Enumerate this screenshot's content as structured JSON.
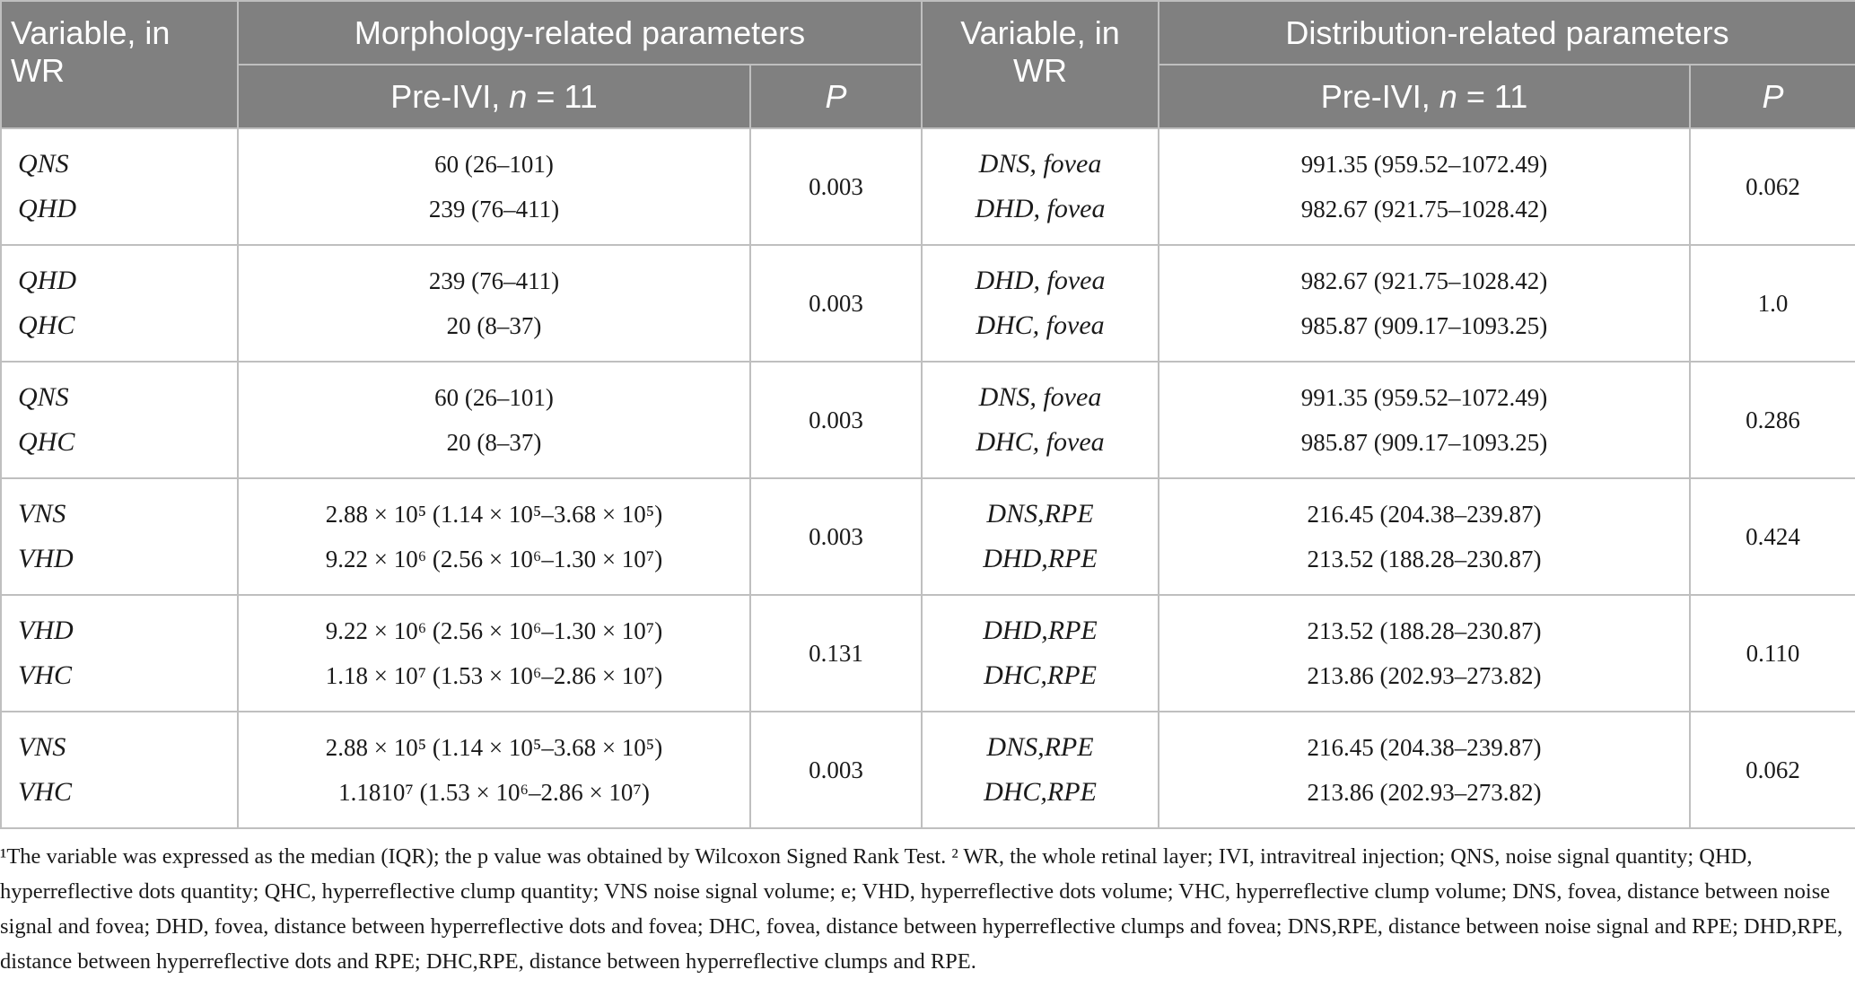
{
  "header": {
    "variable_label": "Variable, in WR",
    "morphology_group": "Morphology-related parameters",
    "distribution_group": "Distribution-related parameters",
    "pre_ivi_prefix": "Pre-IVI, ",
    "pre_ivi_n": "n",
    "pre_ivi_suffix": " = 11",
    "p_label": "P"
  },
  "rows": [
    {
      "m_var": [
        "QNS",
        "QHD"
      ],
      "m_val": [
        "60 (26–101)",
        "239 (76–411)"
      ],
      "m_p": "0.003",
      "d_var": [
        "DNS, fovea",
        "DHD, fovea"
      ],
      "d_val": [
        "991.35 (959.52–1072.49)",
        "982.67 (921.75–1028.42)"
      ],
      "d_p": "0.062"
    },
    {
      "m_var": [
        "QHD",
        "QHC"
      ],
      "m_val": [
        "239 (76–411)",
        "20 (8–37)"
      ],
      "m_p": "0.003",
      "d_var": [
        "DHD, fovea",
        "DHC, fovea"
      ],
      "d_val": [
        "982.67 (921.75–1028.42)",
        "985.87 (909.17–1093.25)"
      ],
      "d_p": "1.0"
    },
    {
      "m_var": [
        "QNS",
        "QHC"
      ],
      "m_val": [
        "60 (26–101)",
        "20 (8–37)"
      ],
      "m_p": "0.003",
      "d_var": [
        "DNS, fovea",
        "DHC, fovea"
      ],
      "d_val": [
        "991.35 (959.52–1072.49)",
        "985.87 (909.17–1093.25)"
      ],
      "d_p": "0.286"
    },
    {
      "m_var": [
        "VNS",
        "VHD"
      ],
      "m_val": [
        "2.88 × 10⁵ (1.14 × 10⁵–3.68 × 10⁵)",
        "9.22 × 10⁶ (2.56 × 10⁶–1.30 × 10⁷)"
      ],
      "m_p": "0.003",
      "d_var": [
        "DNS,RPE",
        "DHD,RPE"
      ],
      "d_val": [
        "216.45 (204.38–239.87)",
        "213.52 (188.28–230.87)"
      ],
      "d_p": "0.424"
    },
    {
      "m_var": [
        "VHD",
        "VHC"
      ],
      "m_val": [
        "9.22 × 10⁶ (2.56 × 10⁶–1.30 × 10⁷)",
        "1.18 × 10⁷ (1.53 × 10⁶–2.86 × 10⁷)"
      ],
      "m_p": "0.131",
      "d_var": [
        "DHD,RPE",
        "DHC,RPE"
      ],
      "d_val": [
        "213.52 (188.28–230.87)",
        "213.86 (202.93–273.82)"
      ],
      "d_p": "0.110"
    },
    {
      "m_var": [
        "VNS",
        "VHC"
      ],
      "m_val": [
        "2.88 × 10⁵ (1.14 × 10⁵–3.68 × 10⁵)",
        "1.1810⁷ (1.53 × 10⁶–2.86 × 10⁷)"
      ],
      "m_p": "0.003",
      "d_var": [
        "DNS,RPE",
        "DHC,RPE"
      ],
      "d_val": [
        "216.45 (204.38–239.87)",
        "213.86 (202.93–273.82)"
      ],
      "d_p": "0.062"
    }
  ],
  "footnote": "¹The variable was expressed as the median (IQR); the p value was obtained by Wilcoxon Signed Rank Test. ² WR, the whole retinal layer; IVI, intravitreal injection; QNS, noise signal quantity; QHD, hyperreflective dots quantity; QHC, hyperreflective clump quantity; VNS noise signal volume; e; VHD, hyperreflective dots volume; VHC, hyperreflective clump volume; DNS, fovea, distance between noise signal and fovea; DHD, fovea, distance between hyperreflective dots and fovea; DHC, fovea, distance between hyperreflective clumps and fovea; DNS,RPE, distance between noise signal and RPE; DHD,RPE, distance between hyperreflective dots and RPE; DHC,RPE, distance between hyperreflective clumps and RPE."
}
